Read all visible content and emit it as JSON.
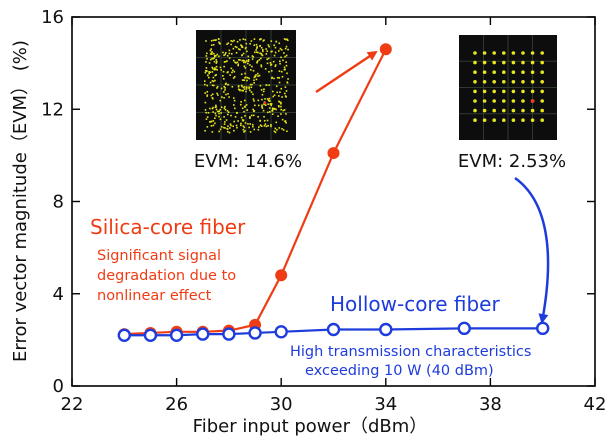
{
  "chart_data": {
    "type": "line",
    "xlabel": "Fiber input power（dBm）",
    "ylabel": "Error vector magnitude（EVM） (%)",
    "xlim": [
      22,
      42
    ],
    "ylim": [
      0,
      16
    ],
    "xticks": [
      22,
      26,
      30,
      34,
      38,
      42
    ],
    "yticks": [
      0,
      4,
      8,
      12,
      16
    ],
    "grid": false,
    "series": [
      {
        "name": "Silica-core fiber",
        "color": "#f03c14",
        "marker": "filled-circle",
        "x": [
          24,
          25,
          26,
          27,
          28,
          29,
          30,
          32,
          34
        ],
        "y": [
          2.25,
          2.3,
          2.35,
          2.35,
          2.4,
          2.65,
          4.8,
          10.1,
          14.6
        ]
      },
      {
        "name": "Hollow-core fiber",
        "color": "#1e3cdc",
        "marker": "open-circle",
        "x": [
          24,
          25,
          26,
          27,
          28,
          29,
          30,
          32,
          34,
          37,
          40
        ],
        "y": [
          2.2,
          2.2,
          2.2,
          2.25,
          2.25,
          2.3,
          2.35,
          2.45,
          2.45,
          2.5,
          2.5
        ]
      }
    ],
    "annotations": {
      "silica_title": "Silica-core fiber",
      "silica_desc": [
        "Significant signal",
        "degradation due to",
        "nonlinear effect"
      ],
      "hollow_title": "Hollow-core fiber",
      "hollow_desc": [
        "High transmission characteristics",
        "exceeding 10 W (40 dBm)"
      ],
      "evm_silica": "EVM: 14.6%",
      "evm_hollow": "EVM: 2.53%"
    }
  }
}
